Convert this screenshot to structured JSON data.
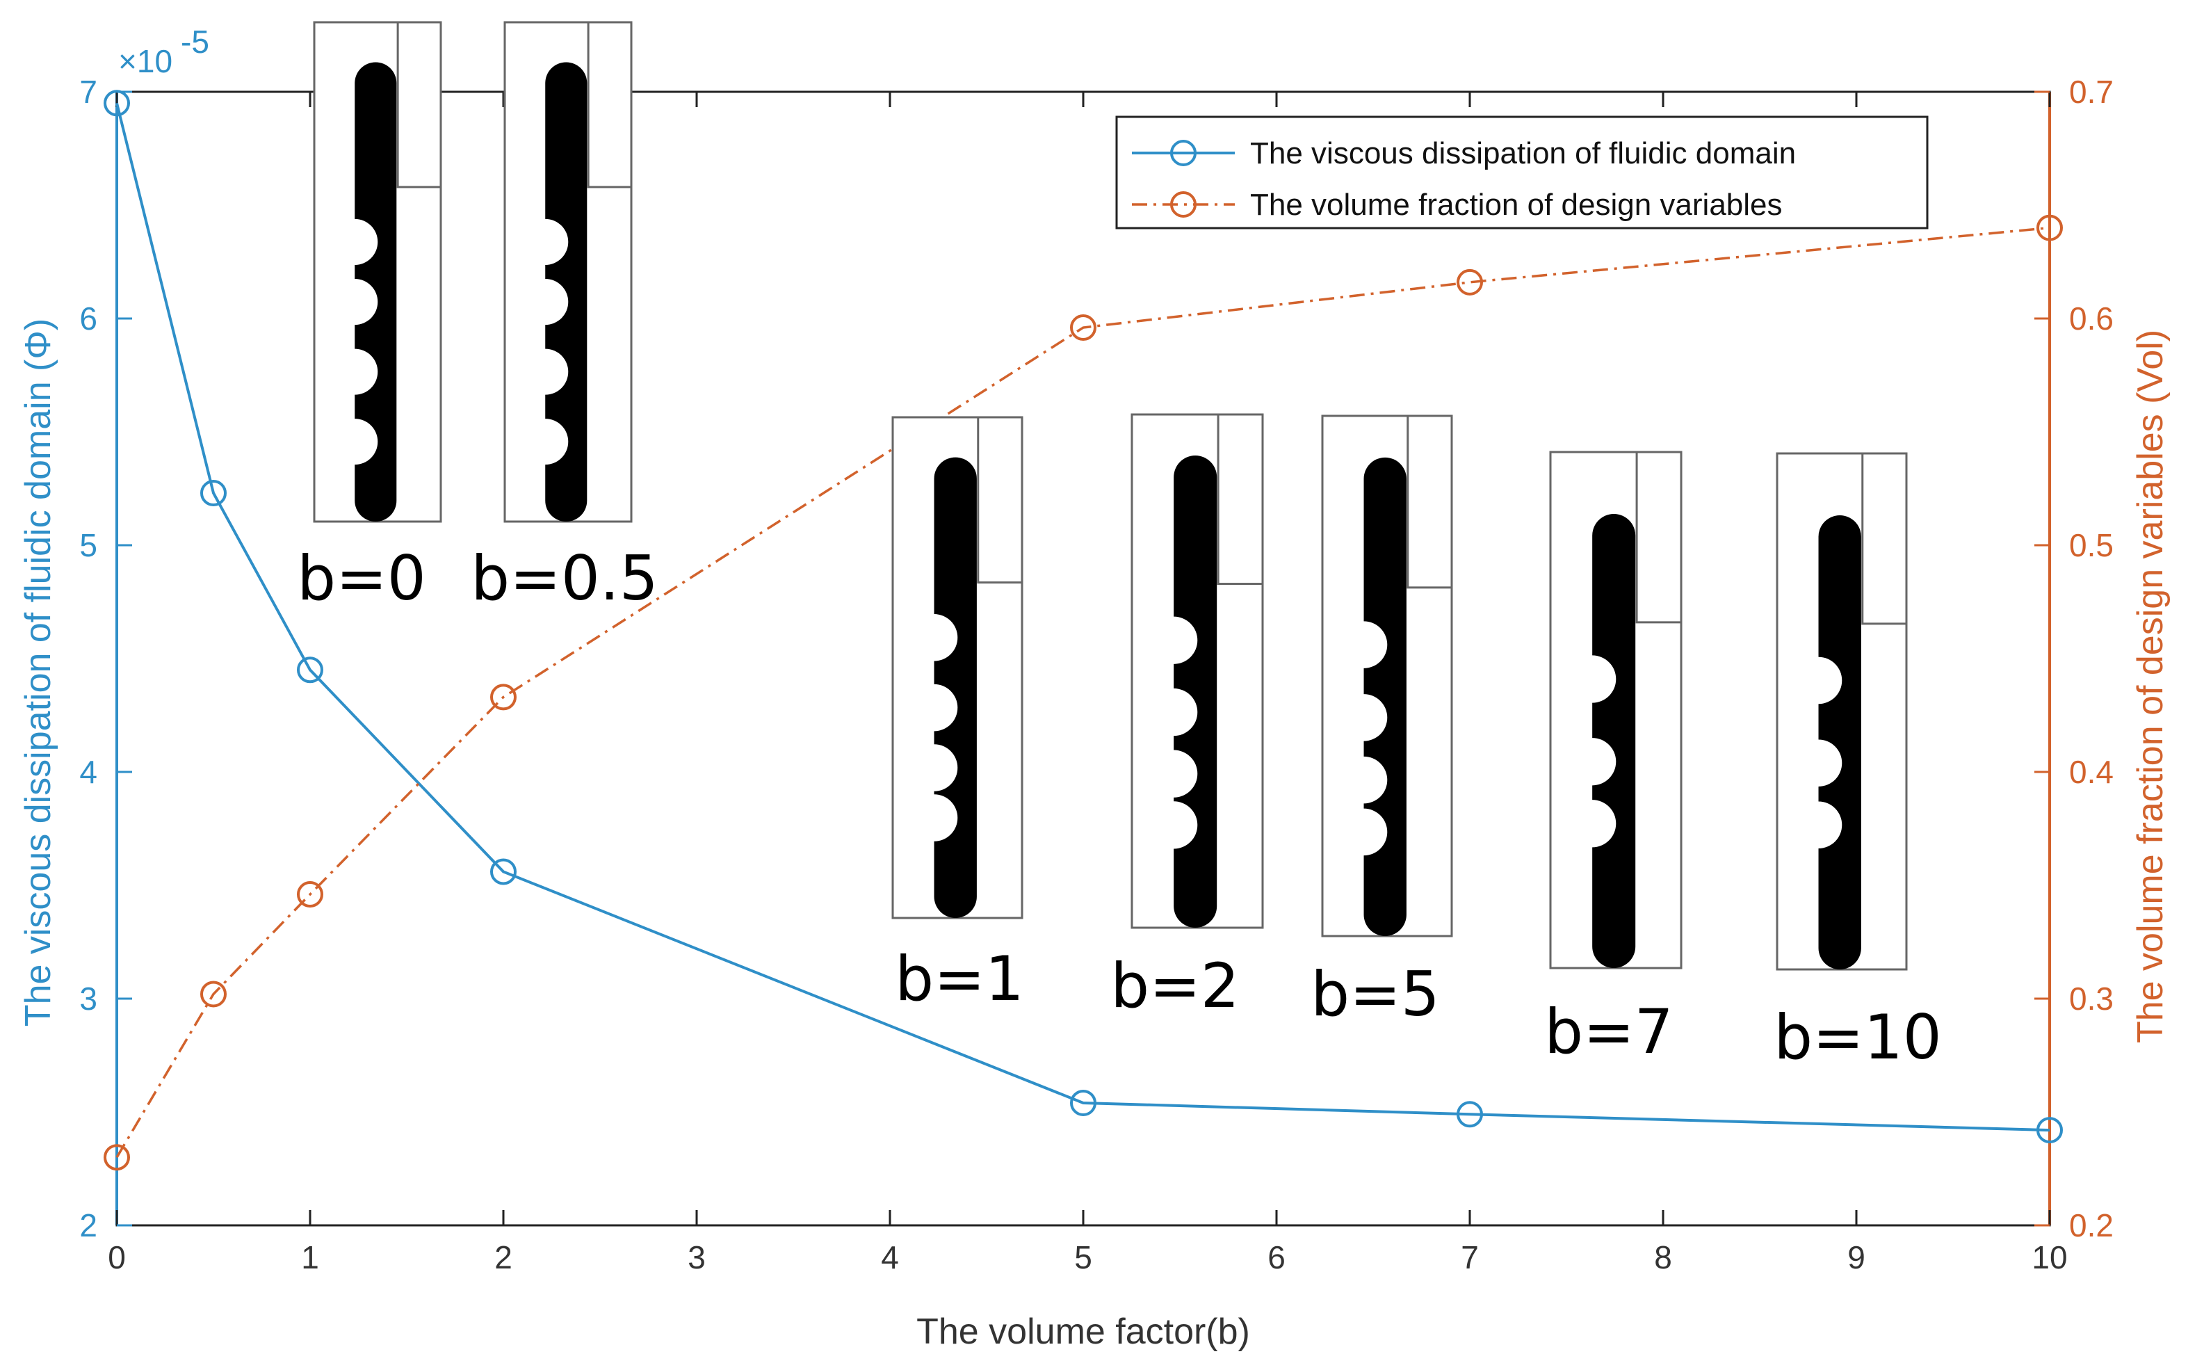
{
  "chart_data": {
    "type": "line",
    "x": [
      0,
      0.5,
      1,
      2,
      5,
      7,
      10
    ],
    "xlabel": "The volume factor(b)",
    "xlim": [
      0,
      10
    ],
    "xticks": [
      "0",
      "1",
      "2",
      "3",
      "4",
      "5",
      "6",
      "7",
      "8",
      "9",
      "10"
    ],
    "left_axis": {
      "label": "The viscous dissipation of fluidic domain (Φ)",
      "ylim": [
        2,
        7
      ],
      "ticks": [
        "2",
        "3",
        "4",
        "5",
        "6",
        "7"
      ],
      "exponent": "×10",
      "exponent_power": "-5",
      "color": "#2f8fc8"
    },
    "right_axis": {
      "label": "The volume fraction of design variables (Vol)",
      "ylim": [
        0.2,
        0.7
      ],
      "ticks": [
        "0.2",
        "0.3",
        "0.4",
        "0.5",
        "0.6",
        "0.7"
      ],
      "color": "#d2622c"
    },
    "series": [
      {
        "name": "The viscous dissipation of fluidic domain",
        "axis": "left",
        "style": "solid",
        "marker": "circle",
        "color": "#2f8fc8",
        "values": [
          6.95,
          5.23,
          4.45,
          3.56,
          2.54,
          2.49,
          2.42
        ]
      },
      {
        "name": "The volume fraction of design variables",
        "axis": "right",
        "style": "dash-dot",
        "marker": "circle",
        "color": "#d2622c",
        "values": [
          0.23,
          0.302,
          0.346,
          0.433,
          0.596,
          0.616,
          0.64
        ]
      }
    ],
    "legend_position": "top-right",
    "annotations": [
      {
        "label": "b=0",
        "variant": "long"
      },
      {
        "label": "b=0.5",
        "variant": "long"
      },
      {
        "label": "b=1",
        "variant": "medium"
      },
      {
        "label": "b=2",
        "variant": "medium"
      },
      {
        "label": "b=5",
        "variant": "medium"
      },
      {
        "label": "b=7",
        "variant": "short"
      },
      {
        "label": "b=10",
        "variant": "short"
      }
    ]
  }
}
